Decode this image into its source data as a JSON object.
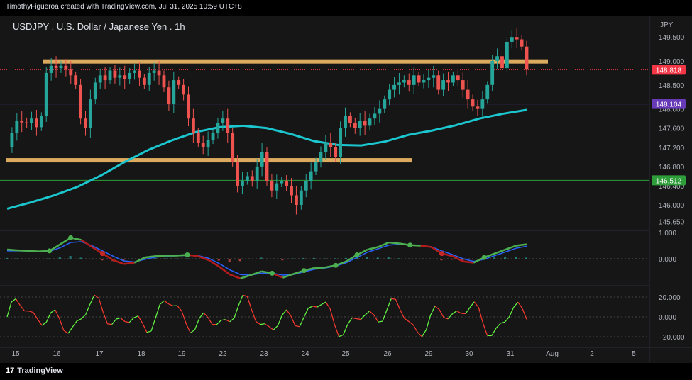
{
  "header": {
    "attribution": "TimothyFigueroa created with TradingView.com, Jul 31, 2025 10:59 UTC+8"
  },
  "footer": {
    "logo_mark": "17",
    "logo_text": "TradingView"
  },
  "chart_data": [
    {
      "type": "line",
      "subtype": "candlestick",
      "title": "USDJPY . U.S. Dollar / Japanese Yen . 1h",
      "currency_label": "JPY",
      "y_ticks": [
        149.5,
        149.0,
        148.5,
        148.0,
        147.6,
        147.2,
        146.8,
        146.4,
        146.0,
        145.65
      ],
      "y_tick_labels": [
        "149.500",
        "149.000",
        "148.500",
        "148.000",
        "147.600",
        "147.200",
        "146.800",
        "146.400",
        "146.000",
        "145.650"
      ],
      "ylim": [
        145.55,
        149.75
      ],
      "x_ticks": [
        "15",
        "16",
        "17",
        "18",
        "19",
        "22",
        "23",
        "24",
        "25",
        "26",
        "29",
        "30",
        "31",
        "Aug",
        "2",
        "5"
      ],
      "price_markers": [
        {
          "value": 148.818,
          "label": "148.818",
          "color": "#f23645"
        },
        {
          "value": 148.104,
          "label": "148.104",
          "color": "#673ab7"
        },
        {
          "value": 146.512,
          "label": "146.512",
          "color": "#2e9e3a"
        }
      ],
      "zones": [
        {
          "value": 148.99,
          "from_index": 0,
          "to_index": 135,
          "color": "#ffc46b"
        },
        {
          "value": 146.93,
          "from_index": 0,
          "to_index": 104,
          "color": "#ffc46b"
        }
      ],
      "moving_average": {
        "color": "#1bc6cf",
        "values": [
          145.92,
          146.05,
          146.2,
          146.38,
          146.62,
          146.9,
          147.15,
          147.35,
          147.52,
          147.62,
          147.65,
          147.6,
          147.48,
          147.33,
          147.25,
          147.24,
          147.32,
          147.46,
          147.55,
          147.66,
          147.8,
          147.9,
          147.98
        ]
      },
      "price_path": [
        147.2,
        147.5,
        147.75,
        147.72,
        147.7,
        147.8,
        147.62,
        147.85,
        148.75,
        148.9,
        148.85,
        148.9,
        148.82,
        148.7,
        148.5,
        147.8,
        147.6,
        148.2,
        148.55,
        148.7,
        148.6,
        148.8,
        148.65,
        148.7,
        148.62,
        148.75,
        148.8,
        148.65,
        148.5,
        148.75,
        148.8,
        148.7,
        148.45,
        148.1,
        148.6,
        148.5,
        148.3,
        147.8,
        147.5,
        147.3,
        147.2,
        147.35,
        147.5,
        147.7,
        147.8,
        147.5,
        146.9,
        146.4,
        146.5,
        146.6,
        146.5,
        146.8,
        147.1,
        146.5,
        146.3,
        146.45,
        146.5,
        146.4,
        146.2,
        146.0,
        146.3,
        146.5,
        146.7,
        146.9,
        147.1,
        147.3,
        147.2,
        147.0,
        147.6,
        147.85,
        147.7,
        147.6,
        147.75,
        147.65,
        147.8,
        147.9,
        148.0,
        148.2,
        148.4,
        148.5,
        148.55,
        148.6,
        148.5,
        148.7,
        148.55,
        148.6,
        148.65,
        148.7,
        148.4,
        148.6,
        148.55,
        148.7,
        148.6,
        148.4,
        148.2,
        148.05,
        148.0,
        148.2,
        148.5,
        149.0,
        149.1,
        148.85,
        149.4,
        149.5,
        149.45,
        149.3,
        148.818
      ]
    },
    {
      "type": "line",
      "subtype": "oscillator_histogram",
      "y_ticks": [
        1.0,
        0.0
      ],
      "y_tick_labels": [
        "1.000",
        "0.000"
      ],
      "ylim": [
        -0.9,
        1.15
      ],
      "series": [
        {
          "role": "fast",
          "color_up": "#4caf50",
          "color_down": "#b71c1c",
          "values": [
            0.35,
            0.32,
            0.3,
            0.28,
            0.3,
            0.55,
            0.8,
            0.72,
            0.45,
            0.2,
            -0.05,
            -0.2,
            -0.15,
            0.05,
            0.1,
            0.12,
            0.12,
            0.15,
            0.1,
            -0.05,
            -0.3,
            -0.6,
            -0.75,
            -0.62,
            -0.48,
            -0.55,
            -0.72,
            -0.58,
            -0.45,
            -0.35,
            -0.33,
            -0.25,
            -0.1,
            0.15,
            0.35,
            0.45,
            0.62,
            0.58,
            0.52,
            0.5,
            0.45,
            0.2,
            0.1,
            -0.1,
            -0.15,
            0.05,
            0.2,
            0.35,
            0.5,
            0.55
          ]
        },
        {
          "role": "slow",
          "color": "#2962ff",
          "values": [
            0.3,
            0.3,
            0.3,
            0.28,
            0.28,
            0.42,
            0.62,
            0.65,
            0.5,
            0.3,
            0.1,
            -0.08,
            -0.12,
            -0.02,
            0.06,
            0.1,
            0.11,
            0.13,
            0.12,
            0.02,
            -0.18,
            -0.42,
            -0.6,
            -0.62,
            -0.55,
            -0.55,
            -0.62,
            -0.6,
            -0.5,
            -0.4,
            -0.35,
            -0.28,
            -0.15,
            0.05,
            0.25,
            0.38,
            0.52,
            0.55,
            0.52,
            0.5,
            0.46,
            0.3,
            0.16,
            0.0,
            -0.1,
            -0.02,
            0.12,
            0.26,
            0.4,
            0.48
          ]
        }
      ],
      "signal_points_index": [
        4,
        6,
        9,
        17,
        25,
        28,
        31,
        33,
        38,
        41,
        45
      ]
    },
    {
      "type": "line",
      "subtype": "momentum_oscillator",
      "y_ticks": [
        20.0,
        0.0,
        -20.0
      ],
      "y_tick_labels": [
        "20.000",
        "0.000",
        "−20.000"
      ],
      "ylim": [
        -25,
        27
      ],
      "color_up": "#66ff44",
      "color_down": "#ff3b30"
    }
  ]
}
